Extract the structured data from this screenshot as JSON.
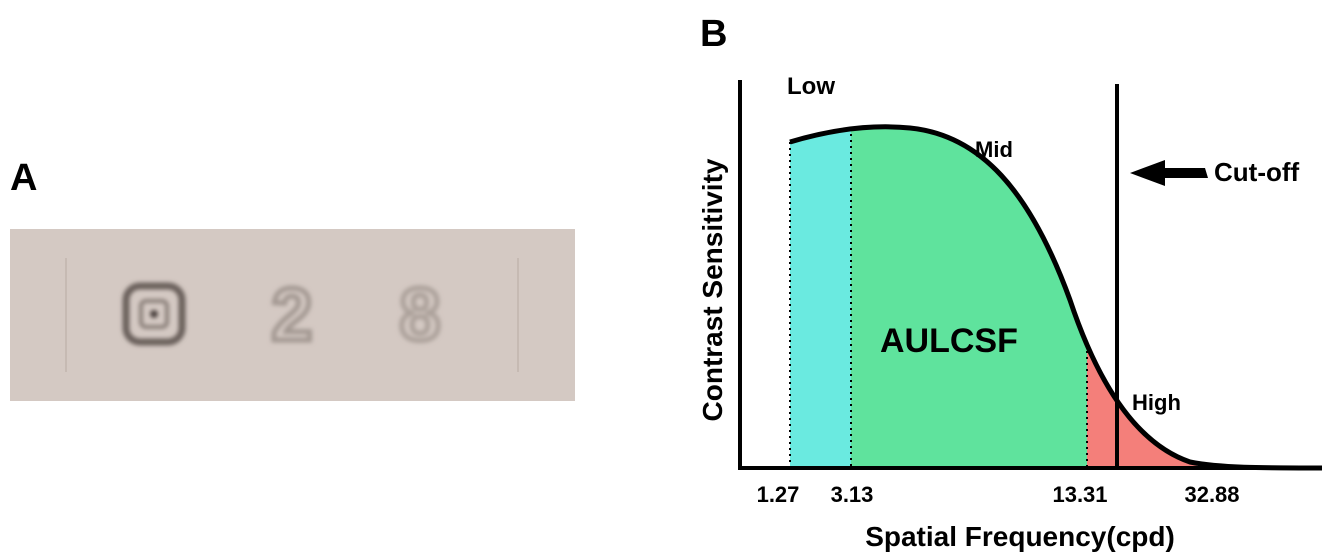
{
  "panel_a": {
    "label": "A",
    "digits": [
      "2",
      "8"
    ]
  },
  "panel_b": {
    "label": "B",
    "y_label": "Contrast Sensitivity",
    "x_label": "Spatial Frequency(cpd)",
    "regions": [
      "Low",
      "Mid",
      "High"
    ],
    "area_label": "AULCSF",
    "cutoff_label": "Cut-off",
    "x_tick_labels": [
      "1.27",
      "3.13",
      "13.31",
      "32.88"
    ]
  }
}
